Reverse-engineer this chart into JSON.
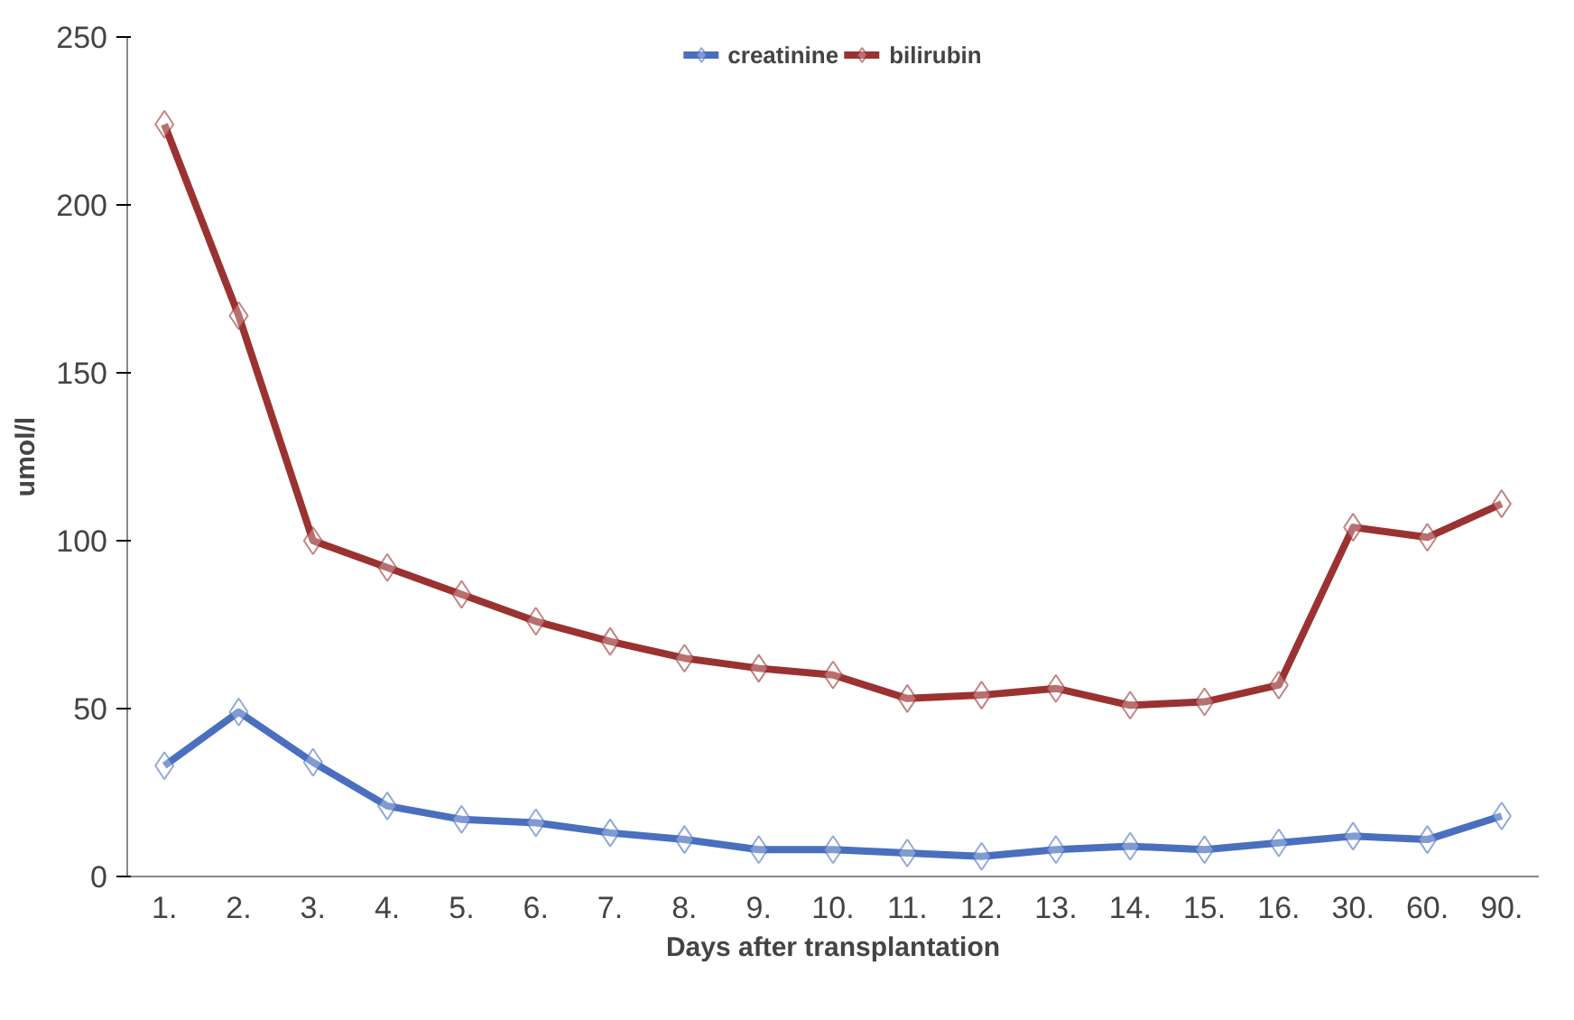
{
  "chart_data": {
    "type": "line",
    "xlabel": "Days after transplantation",
    "ylabel": "umol/l",
    "categories": [
      "1.",
      "2.",
      "3.",
      "4.",
      "5.",
      "6.",
      "7.",
      "8.",
      "9.",
      "10.",
      "11.",
      "12.",
      "13.",
      "14.",
      "15.",
      "16.",
      "30.",
      "60.",
      "90."
    ],
    "series": [
      {
        "name": "creatinine",
        "color": "#4a6fbf",
        "values": [
          33,
          49,
          34,
          21,
          17,
          16,
          13,
          11,
          8,
          8,
          7,
          6,
          8,
          9,
          8,
          10,
          12,
          11,
          18
        ]
      },
      {
        "name": "bilirubin",
        "color": "#9b3232",
        "values": [
          224,
          167,
          100,
          92,
          84,
          76,
          70,
          65,
          62,
          60,
          53,
          54,
          56,
          51,
          52,
          57,
          104,
          101,
          111
        ]
      }
    ],
    "ylim": [
      0,
      250
    ],
    "yticks": [
      0,
      50,
      100,
      150,
      200,
      250
    ],
    "grid": false,
    "legend": "top",
    "marker": "diamond",
    "line_style": "solid"
  }
}
